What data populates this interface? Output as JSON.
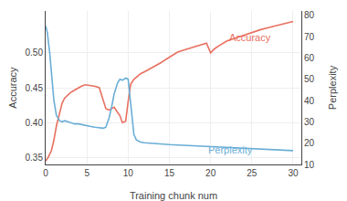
{
  "chart_data": {
    "type": "line",
    "xlabel": "Training chunk num",
    "ylabel": "Accuracy",
    "y2label": "Perplexity",
    "xlim": [
      0,
      31
    ],
    "xticks": [
      0,
      5,
      10,
      15,
      20,
      25,
      30
    ],
    "ylim": [
      0.34,
      0.56
    ],
    "yticks": [
      0.35,
      {
        "value": 0.4,
        "label": "0.40"
      },
      0.45,
      {
        "value": 0.5,
        "label": "0.50"
      }
    ],
    "y2lim": [
      10,
      82
    ],
    "y2ticks": [
      10,
      20,
      30,
      40,
      50,
      60,
      70,
      80
    ],
    "grid": true,
    "series": [
      {
        "color": "#E87060",
        "x": [
          0.0,
          0.3,
          0.7,
          1.0,
          1.3,
          1.7,
          2.0,
          2.3,
          2.7,
          3.0,
          3.3,
          3.7,
          4.0,
          4.3,
          4.7,
          5.0,
          5.5,
          6.0,
          6.5,
          7.0,
          7.3,
          7.7,
          8.0,
          8.3,
          8.7,
          9.0,
          9.3,
          9.7,
          10.0,
          10.3,
          10.7,
          11.0,
          11.5,
          12.0,
          12.5,
          13.0,
          13.5,
          14.0,
          14.5,
          15.0,
          15.5,
          16.0,
          16.5,
          17.0,
          17.5,
          18.0,
          18.5,
          19.0,
          19.5,
          20.0,
          20.5,
          21.0,
          21.5,
          22.0,
          22.5,
          23.0,
          23.5,
          24.0,
          25.0,
          26.0,
          27.0,
          28.0,
          29.0,
          30.0
        ],
        "values": [
          0.345,
          0.35,
          0.36,
          0.375,
          0.395,
          0.415,
          0.428,
          0.435,
          0.44,
          0.443,
          0.445,
          0.448,
          0.45,
          0.452,
          0.454,
          0.454,
          0.453,
          0.452,
          0.45,
          0.43,
          0.42,
          0.418,
          0.42,
          0.422,
          0.415,
          0.41,
          0.4,
          0.402,
          0.43,
          0.455,
          0.462,
          0.465,
          0.47,
          0.473,
          0.476,
          0.479,
          0.482,
          0.486,
          0.49,
          0.494,
          0.498,
          0.501,
          0.503,
          0.505,
          0.507,
          0.509,
          0.511,
          0.513,
          0.514,
          0.5,
          0.506,
          0.51,
          0.514,
          0.517,
          0.519,
          0.521,
          0.524,
          0.526,
          0.53,
          0.533,
          0.536,
          0.539,
          0.542,
          0.545
        ]
      },
      {
        "color": "#6AAED6",
        "axis": "y2",
        "x": [
          0.0,
          0.2,
          0.5,
          0.7,
          1.0,
          1.3,
          1.7,
          2.0,
          2.3,
          2.7,
          3.0,
          3.5,
          4.0,
          4.5,
          5.0,
          5.5,
          6.0,
          6.5,
          7.0,
          7.3,
          7.7,
          8.0,
          8.3,
          8.7,
          9.0,
          9.3,
          9.7,
          10.0,
          10.3,
          10.7,
          11.0,
          11.5,
          12.0,
          12.5,
          13.0,
          13.5,
          14.0,
          14.5,
          15.0,
          15.5,
          16.0,
          16.5,
          17.0,
          17.5,
          18.0,
          18.5,
          19.0,
          19.5,
          20.0,
          21.0,
          22.0,
          23.0,
          24.0,
          25.0,
          26.0,
          27.0,
          28.0,
          29.0,
          30.0
        ],
        "values": [
          75.0,
          72.0,
          62.0,
          52.0,
          40.0,
          33.0,
          30.5,
          30.0,
          30.5,
          30.0,
          29.5,
          29.0,
          29.0,
          28.5,
          28.0,
          27.8,
          27.5,
          27.2,
          27.0,
          27.5,
          32.0,
          37.0,
          43.0,
          48.0,
          50.0,
          49.5,
          50.5,
          50.0,
          38.0,
          24.0,
          21.5,
          20.5,
          20.2,
          20.0,
          19.8,
          19.6,
          19.5,
          19.4,
          19.3,
          19.2,
          19.1,
          19.0,
          18.9,
          18.8,
          18.7,
          18.6,
          18.5,
          18.4,
          18.3,
          18.1,
          17.9,
          17.7,
          17.5,
          17.3,
          17.1,
          16.9,
          16.8,
          16.7,
          16.5
        ]
      }
    ],
    "annotations": [
      {
        "text": "Accuracy",
        "x": 22.0,
        "y": 0.512,
        "color": "#E87060"
      },
      {
        "text": "Perplexity",
        "x": 19.5,
        "y": 13.5,
        "axis": "y2",
        "color": "#6AAED6"
      }
    ]
  }
}
